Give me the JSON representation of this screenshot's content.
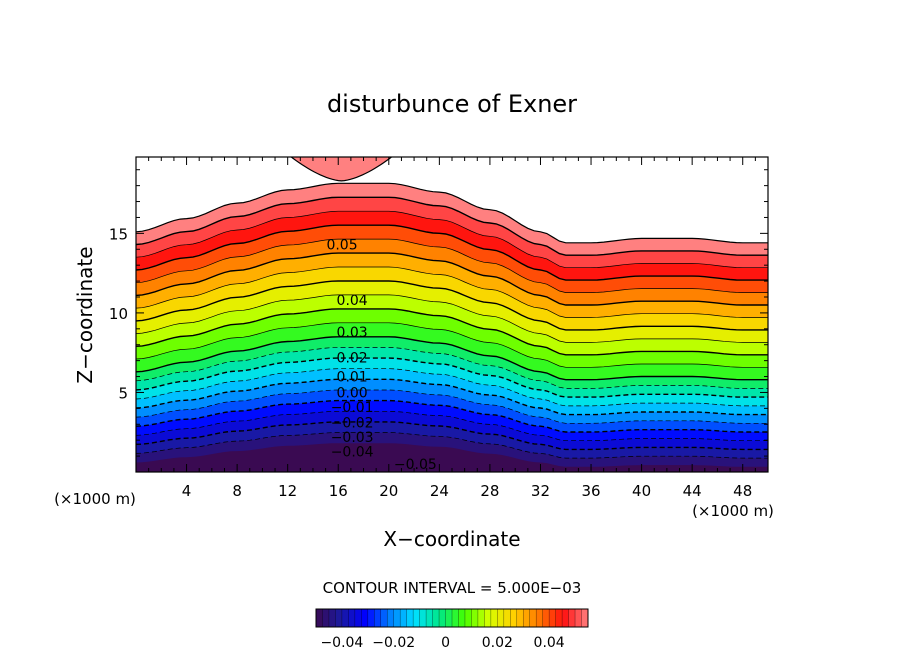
{
  "chart_data": {
    "type": "contour",
    "title": "disturbunce of Exner",
    "xlabel": "X−coordinate",
    "ylabel": "Z−coordinate",
    "x_unit_left": "(×1000 m)",
    "x_unit_right": "(×1000 m)",
    "xlim": [
      0,
      50
    ],
    "ylim": [
      0,
      19.8
    ],
    "x_ticks": [
      4,
      8,
      12,
      16,
      20,
      24,
      28,
      32,
      36,
      40,
      44,
      48
    ],
    "y_ticks": [
      5,
      10,
      15
    ],
    "contour_interval_text": "CONTOUR INTERVAL = 5.000E−03",
    "contour_interval": 0.005,
    "level_range": [
      -0.05,
      0.055
    ],
    "zero_crossing_profile": {
      "x": [
        0,
        4,
        8,
        12,
        16,
        20,
        24,
        28,
        32,
        34,
        36,
        40,
        44,
        48,
        50
      ],
      "z": [
        6.3,
        6.9,
        7.6,
        8.2,
        8.5,
        8.5,
        8.1,
        7.3,
        6.3,
        5.8,
        5.8,
        6.0,
        6.0,
        5.8,
        5.8
      ]
    },
    "upper_lobe": {
      "x_range": [
        11.5,
        21
      ],
      "z_min": 18.3
    },
    "contour_labels": [
      {
        "text": "0.05",
        "x": 16.3,
        "z": 14.3
      },
      {
        "text": "0.04",
        "x": 17.1,
        "z": 10.8
      },
      {
        "text": "0.03",
        "x": 17.1,
        "z": 8.8
      },
      {
        "text": "0.02",
        "x": 17.1,
        "z": 7.2
      },
      {
        "text": "0.01",
        "x": 17.1,
        "z": 6.0
      },
      {
        "text": "0.00",
        "x": 17.1,
        "z": 5.0
      },
      {
        "text": "−0.01",
        "x": 17.1,
        "z": 4.1
      },
      {
        "text": "−0.02",
        "x": 17.1,
        "z": 3.1
      },
      {
        "text": "−0.03",
        "x": 17.1,
        "z": 2.2
      },
      {
        "text": "−0.04",
        "x": 17.1,
        "z": 1.3
      },
      {
        "text": "−0.05",
        "x": 22.1,
        "z": 0.5
      }
    ],
    "colorbar": {
      "ticks": [
        "−0.04",
        "−0.02",
        "0",
        "0.02",
        "0.04"
      ],
      "tick_values": [
        -0.04,
        -0.02,
        0,
        0.02,
        0.04
      ],
      "range": [
        -0.05,
        0.055
      ]
    },
    "negative_contours_dashed": true,
    "colormap": [
      "#3a0a52",
      "#1a1aa0",
      "#0000ff",
      "#0080ff",
      "#00e0ff",
      "#00e888",
      "#44ff00",
      "#d8ff00",
      "#ffd000",
      "#ff7a00",
      "#ff1010",
      "#ff8080"
    ]
  }
}
